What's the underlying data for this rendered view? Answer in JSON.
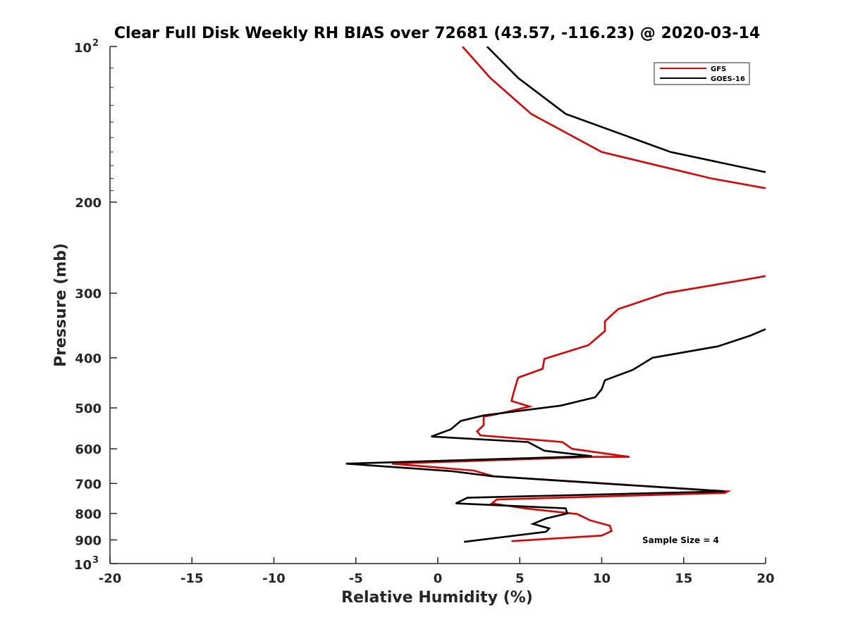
{
  "chart_data": {
    "type": "line",
    "title": "Clear Full Disk Weekly RH BIAS over 72681 (43.57, -116.23) @ 2020-03-14",
    "xlabel": "Relative Humidity (%)",
    "ylabel": "Pressure (mb)",
    "xlim": [
      -20,
      20
    ],
    "ylim": [
      100,
      1000
    ],
    "y_scale": "log",
    "y_reversed": true,
    "grid": false,
    "legend_position": "top-right",
    "x_ticks": [
      "-20",
      "-15",
      "-10",
      "-5",
      "0",
      "5",
      "10",
      "15",
      "20"
    ],
    "x_tick_values": [
      -20,
      -15,
      -10,
      -5,
      0,
      5,
      10,
      15,
      20
    ],
    "y_ticks": [
      {
        "value": 100,
        "base": "10",
        "exp": "2"
      },
      {
        "value": 200,
        "label": "200"
      },
      {
        "value": 300,
        "label": "300"
      },
      {
        "value": 400,
        "label": "400"
      },
      {
        "value": 500,
        "label": "500"
      },
      {
        "value": 600,
        "label": "600"
      },
      {
        "value": 700,
        "label": "700"
      },
      {
        "value": 800,
        "label": "800"
      },
      {
        "value": 900,
        "label": "900"
      },
      {
        "value": 1000,
        "base": "10",
        "exp": "3"
      }
    ],
    "annotation": "Sample Size = 4",
    "series": [
      {
        "name": "GFS",
        "color": "#e00000",
        "segments": [
          [
            [
              1.5,
              100
            ],
            [
              3.2,
              115
            ],
            [
              5.7,
              135
            ],
            [
              10.0,
              160
            ],
            [
              16.7,
              180
            ],
            [
              20.0,
              188
            ]
          ],
          [
            [
              20.0,
              278
            ],
            [
              18.6,
              283
            ],
            [
              13.9,
              300
            ],
            [
              11.0,
              322
            ],
            [
              10.2,
              340
            ],
            [
              10.2,
              355
            ],
            [
              9.2,
              378
            ],
            [
              6.5,
              402
            ],
            [
              6.4,
              420
            ],
            [
              4.9,
              437
            ],
            [
              4.6,
              470
            ],
            [
              4.5,
              485
            ],
            [
              5.6,
              497
            ],
            [
              3.5,
              515
            ],
            [
              2.8,
              520
            ],
            [
              2.8,
              540
            ],
            [
              2.4,
              555
            ],
            [
              2.6,
              565
            ],
            [
              7.6,
              582
            ],
            [
              8.2,
              600
            ],
            [
              11.7,
              622
            ],
            [
              9.5,
              622
            ],
            [
              -2.8,
              641
            ],
            [
              2.2,
              661
            ],
            [
              3.4,
              678
            ],
            [
              17.7,
              725
            ],
            [
              17.5,
              730
            ],
            [
              3.6,
              752
            ],
            [
              3.3,
              765
            ],
            [
              5.3,
              782
            ],
            [
              8.5,
              802
            ],
            [
              9.3,
              825
            ],
            [
              10.5,
              845
            ],
            [
              10.6,
              865
            ],
            [
              10.0,
              883
            ],
            [
              4.5,
              905
            ]
          ]
        ]
      },
      {
        "name": "GOES-16",
        "color": "#000000",
        "segments": [
          [
            [
              3.0,
              100
            ],
            [
              4.9,
              115
            ],
            [
              7.8,
              135
            ],
            [
              14.2,
              160
            ],
            [
              20.0,
              175
            ]
          ],
          [
            [
              20.0,
              352
            ],
            [
              19.1,
              362
            ],
            [
              17.1,
              380
            ],
            [
              13.1,
              400
            ],
            [
              11.9,
              422
            ],
            [
              10.2,
              442
            ],
            [
              10.0,
              460
            ],
            [
              9.6,
              477
            ],
            [
              7.5,
              495
            ],
            [
              2.8,
              517
            ],
            [
              1.4,
              530
            ],
            [
              0.8,
              550
            ],
            [
              -0.4,
              568
            ],
            [
              5.5,
              582
            ],
            [
              6.5,
              605
            ],
            [
              9.4,
              620
            ],
            [
              -5.6,
              641
            ],
            [
              0.9,
              663
            ],
            [
              3.3,
              678
            ],
            [
              17.5,
              725
            ],
            [
              1.8,
              746
            ],
            [
              1.1,
              765
            ],
            [
              7.8,
              782
            ],
            [
              7.9,
              800
            ],
            [
              6.6,
              818
            ],
            [
              5.8,
              838
            ],
            [
              6.8,
              855
            ],
            [
              6.6,
              868
            ],
            [
              1.6,
              908
            ]
          ]
        ]
      }
    ]
  }
}
